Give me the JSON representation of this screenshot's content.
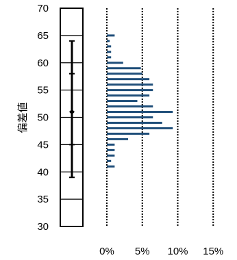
{
  "chart_data": {
    "type": "bar",
    "orientation": "horizontal",
    "ylabel": "偏差値",
    "ylim": [
      30,
      70
    ],
    "y_ticks": [
      30,
      35,
      40,
      45,
      50,
      55,
      60,
      65,
      70
    ],
    "y_tick_labels": [
      "30",
      "35",
      "40",
      "45",
      "50",
      "55",
      "60",
      "65",
      "70"
    ],
    "xlim": [
      0,
      15
    ],
    "x_ticks": [
      0,
      5,
      10,
      15
    ],
    "x_tick_labels": [
      "0%",
      "5%",
      "10%",
      "15%"
    ],
    "grid": "vertical dotted lines at 0%, 5%, 10%, 15%",
    "colors": {
      "bar": "#1f4e79",
      "axis": "#000000"
    },
    "series": [
      {
        "values": [
          {
            "y": 65,
            "pct": 1.1
          },
          {
            "y": 64,
            "pct": 0.4
          },
          {
            "y": 63,
            "pct": 0.6
          },
          {
            "y": 62,
            "pct": 0.6
          },
          {
            "y": 61,
            "pct": 0.6
          },
          {
            "y": 60,
            "pct": 2.3
          },
          {
            "y": 59,
            "pct": 4.8
          },
          {
            "y": 58,
            "pct": 5.0
          },
          {
            "y": 57,
            "pct": 6.0
          },
          {
            "y": 56,
            "pct": 6.5
          },
          {
            "y": 55,
            "pct": 6.5
          },
          {
            "y": 54,
            "pct": 6.0
          },
          {
            "y": 53,
            "pct": 4.3
          },
          {
            "y": 52,
            "pct": 6.5
          },
          {
            "y": 51,
            "pct": 9.3
          },
          {
            "y": 50,
            "pct": 6.5
          },
          {
            "y": 49,
            "pct": 7.8
          },
          {
            "y": 48,
            "pct": 9.3
          },
          {
            "y": 47,
            "pct": 6.0
          },
          {
            "y": 46,
            "pct": 3.0
          },
          {
            "y": 45,
            "pct": 1.1
          },
          {
            "y": 44,
            "pct": 1.1
          },
          {
            "y": 43,
            "pct": 1.1
          },
          {
            "y": 42,
            "pct": 0.6
          },
          {
            "y": 41,
            "pct": 1.1
          }
        ]
      }
    ],
    "range_marker": {
      "min": 39,
      "max": 64,
      "mean": 51,
      "sd_low": 45,
      "sd_high": 58
    }
  }
}
